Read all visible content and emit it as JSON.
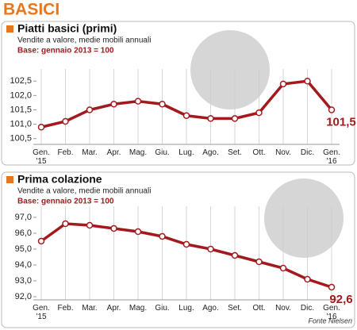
{
  "title": "BASICI",
  "source": "Fonte Nielsen",
  "chart_data": [
    {
      "type": "line",
      "title": "Piatti basici (primi)",
      "subtitle": "Vendite a valore, medie mobili annuali",
      "note": "Base: gennaio 2013 = 100",
      "categories": [
        "Gen.\n'15",
        "Feb.",
        "Mar.",
        "Apr.",
        "Mag.",
        "Giu.",
        "Lug.",
        "Ago.",
        "Set.",
        "Ott.",
        "Nov.",
        "Dic.",
        "Gen.\n'16"
      ],
      "values": [
        100.9,
        101.1,
        101.5,
        101.7,
        101.8,
        101.7,
        101.3,
        101.2,
        101.2,
        101.4,
        102.4,
        102.5,
        101.5
      ],
      "value_labels": [
        null,
        null,
        null,
        null,
        null,
        null,
        null,
        null,
        null,
        null,
        null,
        null,
        "101,5"
      ],
      "color": "#a3191e",
      "ylim": [
        100.3,
        102.7
      ],
      "yticks": [
        {
          "value": 100.5,
          "label": "100,5"
        },
        {
          "value": 101.0,
          "label": "101,0"
        },
        {
          "value": 101.5,
          "label": "101,5"
        },
        {
          "value": 102.0,
          "label": "102,0"
        },
        {
          "value": 102.5,
          "label": "102,5"
        }
      ]
    },
    {
      "type": "line",
      "title": "Prima colazione",
      "subtitle": "Vendite a valore, medie mobili annuali",
      "note": "Base: gennaio 2013 = 100",
      "categories": [
        "Gen.\n'15",
        "Feb.",
        "Mar.",
        "Apr.",
        "Mag.",
        "Giu.",
        "Lug.",
        "Ago.",
        "Set.",
        "Ott.",
        "Nov.",
        "Dic.",
        "Gen.\n'16"
      ],
      "values": [
        95.5,
        96.6,
        96.5,
        96.3,
        96.1,
        95.8,
        95.3,
        95.0,
        94.6,
        94.2,
        93.8,
        93.1,
        92.6
      ],
      "value_labels": [
        null,
        null,
        null,
        null,
        null,
        null,
        null,
        null,
        null,
        null,
        null,
        null,
        "92,6"
      ],
      "color": "#a3191e",
      "ylim": [
        91.8,
        97.3
      ],
      "yticks": [
        {
          "value": 92,
          "label": "92,0"
        },
        {
          "value": 93,
          "label": "93,0"
        },
        {
          "value": 94,
          "label": "94,0"
        },
        {
          "value": 95,
          "label": "95,0"
        },
        {
          "value": 96,
          "label": "96,0"
        },
        {
          "value": 97,
          "label": "97,0"
        }
      ]
    }
  ]
}
